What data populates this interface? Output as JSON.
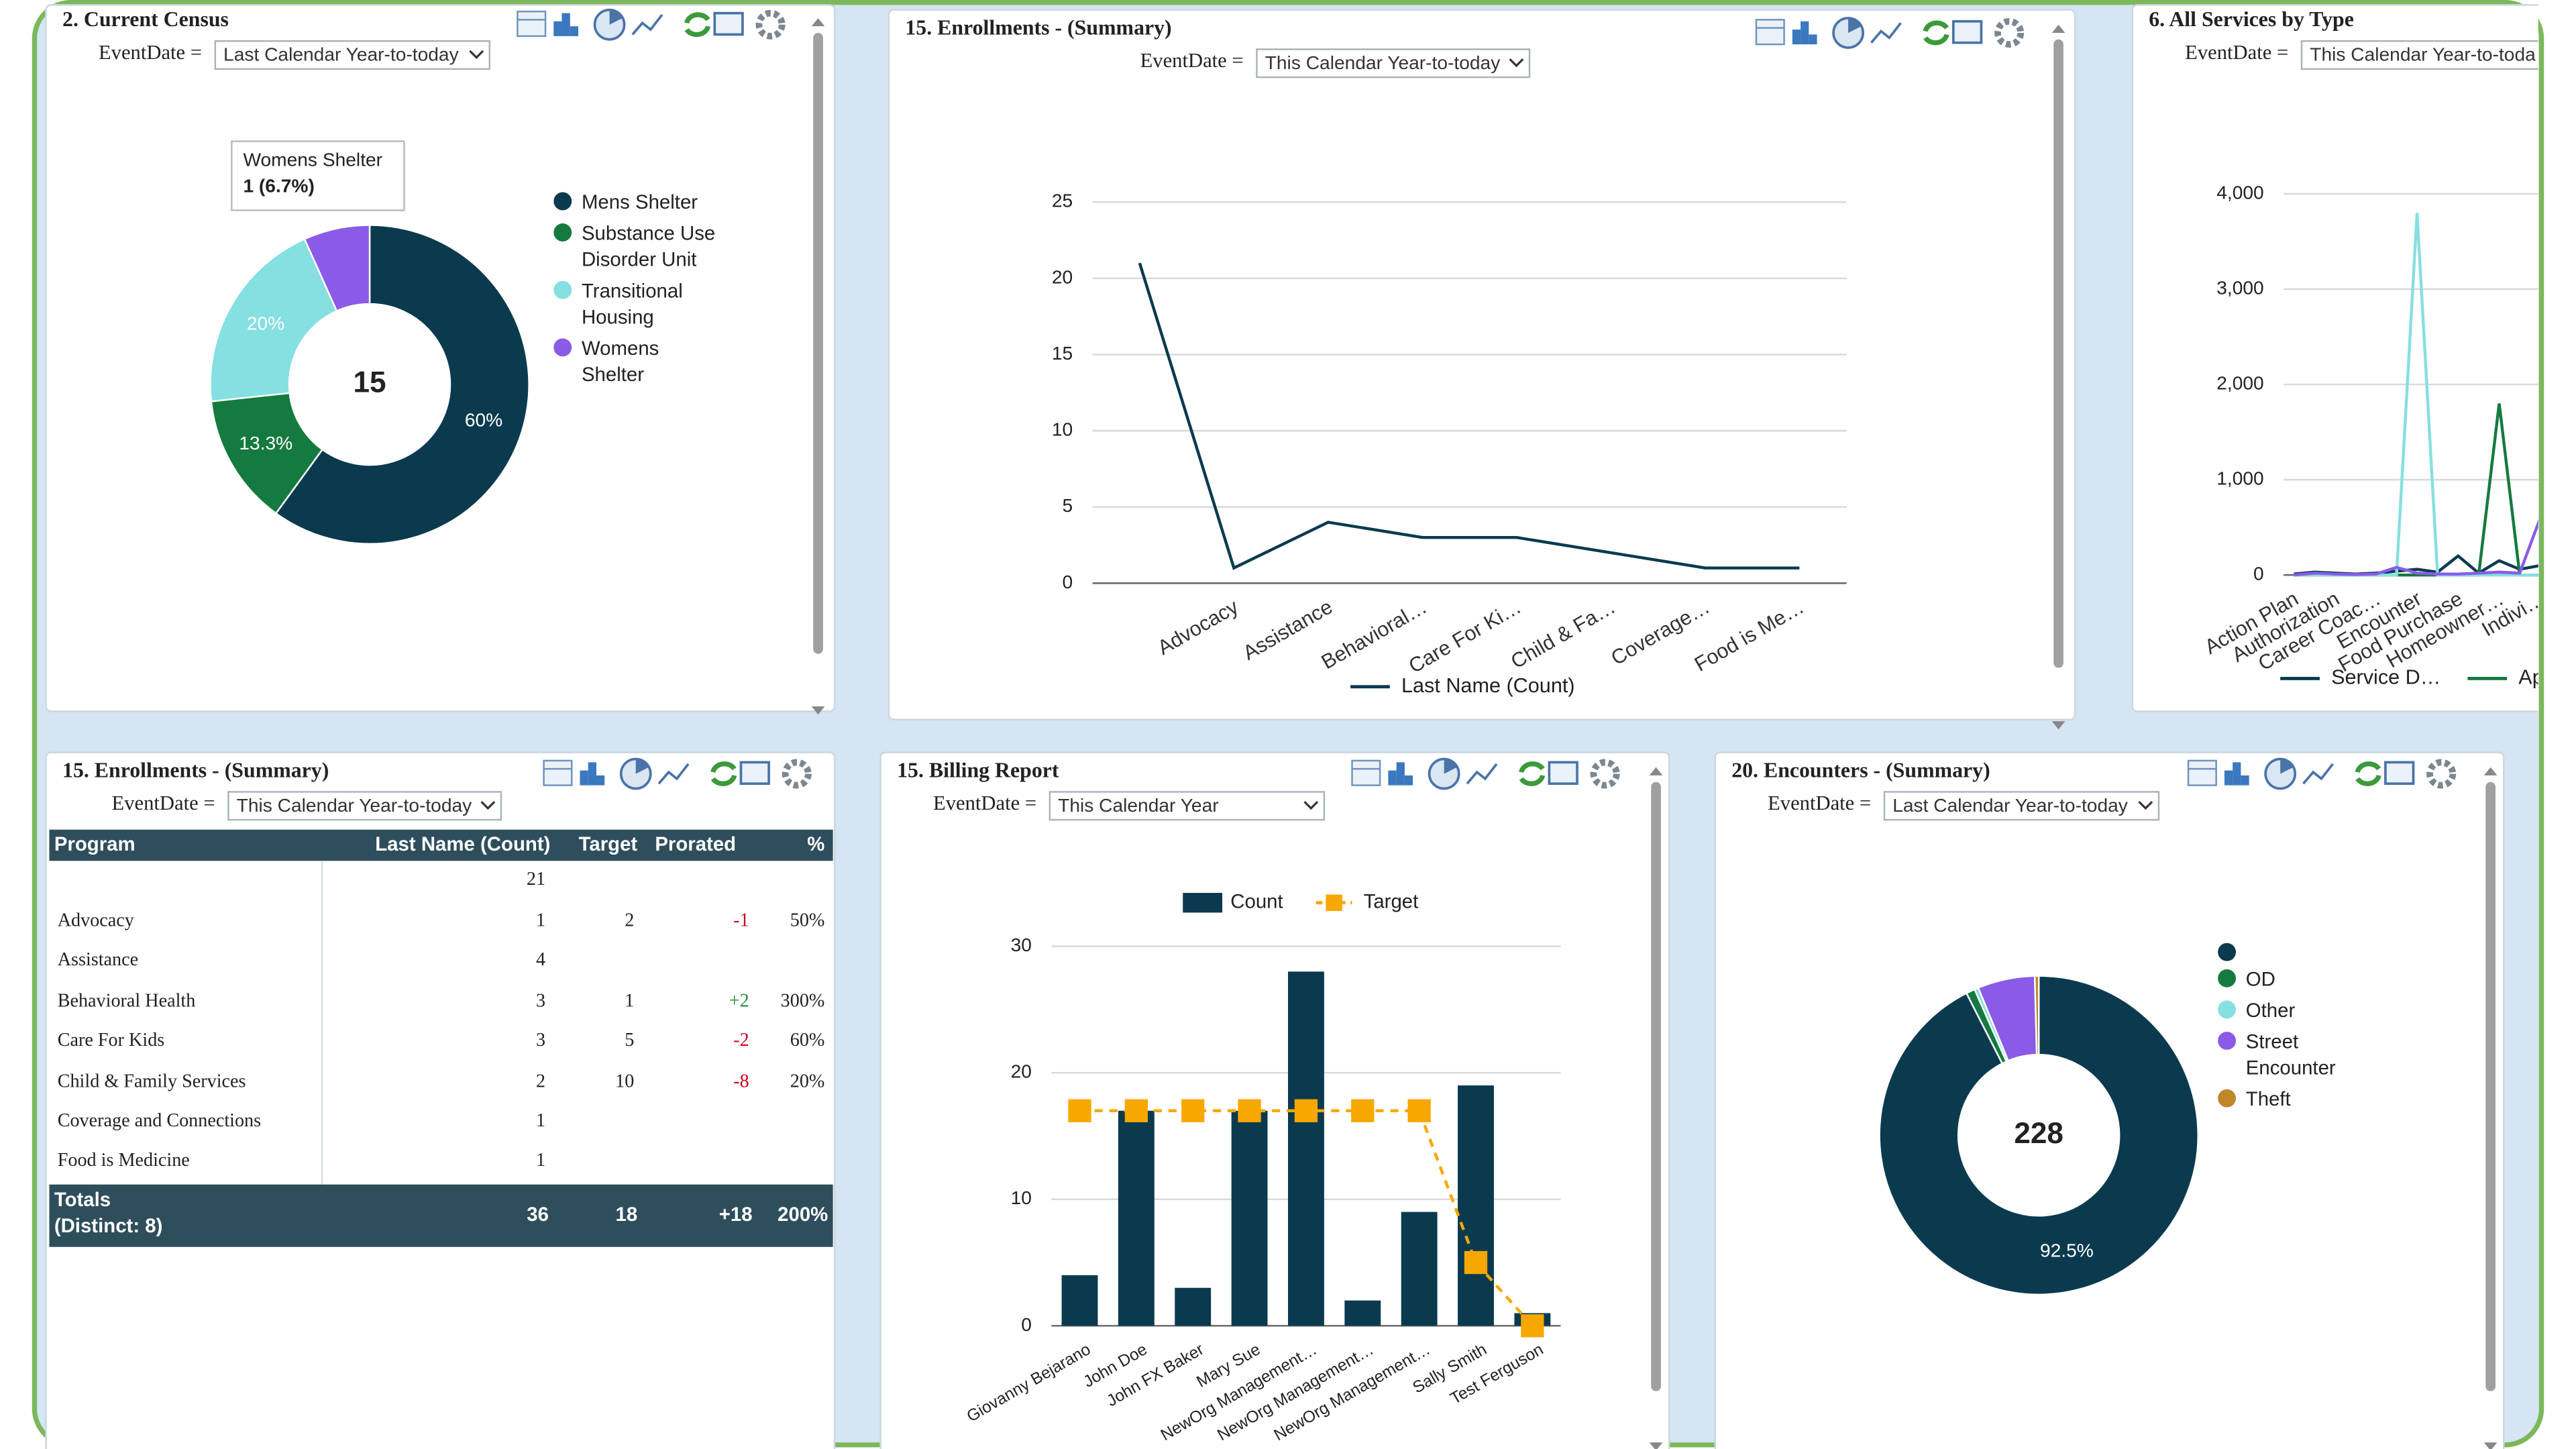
{
  "panels": [
    {
      "title": "2. Current Census",
      "filter_label": "EventDate =",
      "filter_value": "Last Calendar Year-to-today",
      "chart": {
        "type": "donut",
        "center_label": "15",
        "categories": [
          "Mens Shelter",
          "Substance Use Disorder Unit",
          "Transitional Housing",
          "Womens Shelter"
        ],
        "values": [
          60,
          13.3,
          20,
          6.7
        ],
        "value_labels": [
          "60%",
          "13.3%",
          "20%",
          null
        ],
        "colors": [
          "#0b3a4f",
          "#157a3f",
          "#86dfe0",
          "#8b5be8"
        ],
        "tooltip": {
          "title": "Womens Shelter",
          "text": "1 (6.7%)"
        }
      }
    },
    {
      "title": "15. Enrollments - (Summary)",
      "filter_label": "EventDate =",
      "filter_value": "This Calendar Year-to-today",
      "chart": {
        "type": "line",
        "categories": [
          null,
          "Advocacy",
          "Assistance",
          "Behavioral…",
          "Care For Ki…",
          "Child & Fa…",
          "Coverage…",
          "Food is Me…"
        ],
        "series": [
          {
            "name": "Last Name (Count)",
            "color": "#0b3a4f",
            "values": [
              21,
              1,
              4,
              3,
              3,
              2,
              1,
              1
            ]
          }
        ],
        "ylim": [
          0,
          25
        ],
        "yticks": [
          0,
          5,
          10,
          15,
          20,
          25
        ],
        "grid": true
      }
    },
    {
      "title": "6. All Services by Type",
      "filter_label": "EventDate =",
      "filter_value": "This Calendar Year-to-toda",
      "chart": {
        "type": "line",
        "categories": [
          "Action Plan",
          null,
          "Authorization",
          null,
          "Career Coac…",
          null,
          "Encounter",
          null,
          "Food Purchase",
          null,
          "Homeowner…",
          null,
          "Indivi…",
          null
        ],
        "series": [
          {
            "name": "Service D…",
            "color": "#0b3a4f",
            "values": [
              10,
              30,
              20,
              10,
              20,
              40,
              60,
              30,
              200,
              20,
              150,
              60,
              100,
              40
            ]
          },
          {
            "name": "Ap…",
            "color": "#157a3f",
            "values": [
              0,
              0,
              0,
              0,
              0,
              0,
              0,
              0,
              0,
              0,
              1800,
              0,
              0,
              0
            ]
          },
          {
            "color": "#86dfe0",
            "values": [
              0,
              0,
              0,
              0,
              0,
              0,
              3800,
              0,
              0,
              0,
              0,
              0,
              0,
              0
            ]
          },
          {
            "color": "#8b5be8",
            "values": [
              0,
              20,
              10,
              5,
              10,
              80,
              20,
              10,
              10,
              20,
              30,
              20,
              600,
              100
            ]
          }
        ],
        "ylim": [
          0,
          4000
        ],
        "yticks": [
          0,
          {
            "value": 1000,
            "label": "1,000"
          },
          {
            "value": 2000,
            "label": "2,000"
          },
          {
            "value": 3000,
            "label": "3,000"
          },
          {
            "value": 4000,
            "label": "4,000"
          }
        ],
        "grid": true
      }
    },
    {
      "title": "15. Enrollments - (Summary)",
      "filter_label": "EventDate =",
      "filter_value": "This Calendar Year-to-today",
      "table": {
        "columns": [
          "Program",
          "Last Name (Count)",
          "Target",
          "Prorated",
          "%"
        ],
        "rows": [
          [
            null,
            21,
            null,
            null,
            null
          ],
          [
            "Advocacy",
            1,
            2,
            "-1",
            "50%"
          ],
          [
            "Assistance",
            4,
            null,
            null,
            null
          ],
          [
            "Behavioral Health",
            3,
            1,
            "+2",
            "300%"
          ],
          [
            "Care For Kids",
            3,
            5,
            "-2",
            "60%"
          ],
          [
            "Child & Family Services",
            2,
            10,
            "-8",
            "20%"
          ],
          [
            "Coverage and Connections",
            1,
            null,
            null,
            null
          ],
          [
            "Food is Medicine",
            1,
            null,
            null,
            null
          ]
        ],
        "totals": {
          "label": [
            "Totals",
            "(Distinct: 8)"
          ],
          "cells": [
            36,
            18,
            "+18",
            "200%"
          ]
        }
      }
    },
    {
      "title": "15. Billing Report",
      "filter_label": "EventDate =",
      "filter_value": "This Calendar Year",
      "chart": {
        "type": "bar",
        "categories": [
          "Giovanny Bejarano",
          "John Doe",
          "John FX Baker",
          "Mary Sue",
          "NewOrg Management…",
          "NewOrg Management…",
          "NewOrg Management…",
          "Sally Smith",
          "Test Ferguson"
        ],
        "series": [
          {
            "name": "Count",
            "type": "bar",
            "color": "#0b3a4f",
            "values": [
              4,
              17,
              3,
              17,
              28,
              2,
              9,
              19,
              1
            ]
          },
          {
            "name": "Target",
            "type": "line",
            "color": "#f7a800",
            "values": [
              17,
              17,
              17,
              17,
              17,
              17,
              17,
              5,
              0
            ]
          }
        ],
        "ylim": [
          0,
          30
        ],
        "yticks": [
          0,
          10,
          20,
          30
        ],
        "grid": true
      }
    },
    {
      "title": "20. Encounters - (Summary)",
      "filter_label": "EventDate =",
      "filter_value": "Last Calendar Year-to-today",
      "chart": {
        "type": "donut",
        "center_label": "228",
        "categories": [
          null,
          "OD",
          "Other",
          "Street Encounter",
          "Theft"
        ],
        "values": [
          92.5,
          0.9,
          0.4,
          5.8,
          0.4
        ],
        "value_labels": [
          "92.5%",
          null,
          null,
          null,
          null
        ],
        "colors": [
          "#0b3a4f",
          "#157a3f",
          "#86dfe0",
          "#8b5be8",
          "#c0862a"
        ]
      }
    }
  ]
}
